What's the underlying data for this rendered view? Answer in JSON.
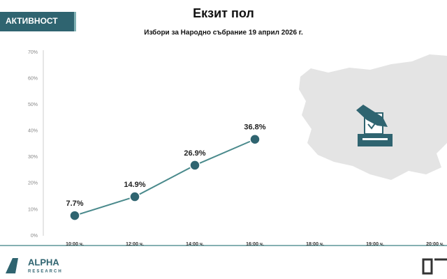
{
  "badge": "АКТИВНОСТ",
  "chart_data": {
    "type": "line",
    "title": "Екзит пол",
    "subtitle": "Избори за Народно събрание 19 април 2026 г.",
    "categories": [
      "10:00 ч.",
      "12:00 ч.",
      "14:00 ч.",
      "16:00 ч.",
      "18:00 ч.",
      "19:00 ч.",
      "20:00 ч."
    ],
    "values": [
      7.7,
      14.9,
      26.9,
      36.8,
      null,
      null,
      null
    ],
    "value_labels": [
      "7.7%",
      "14.9%",
      "26.9%",
      "36.8%",
      null,
      null,
      null
    ],
    "color": "#4a8a8c",
    "marker_color": "#2f6470",
    "ylim": [
      0,
      70
    ],
    "yticks": [
      {
        "value": 0,
        "label": "0%"
      },
      {
        "value": 10,
        "label": "10%"
      },
      {
        "value": 20,
        "label": "20%"
      },
      {
        "value": 30,
        "label": "30%"
      },
      {
        "value": 40,
        "label": "40%"
      },
      {
        "value": 50,
        "label": "50%"
      },
      {
        "value": 60,
        "label": "60%"
      },
      {
        "value": 70,
        "label": "70%"
      }
    ],
    "grid": false
  },
  "footer": {
    "logo_name": "ALPHA",
    "logo_sub": "RESEARCH"
  }
}
